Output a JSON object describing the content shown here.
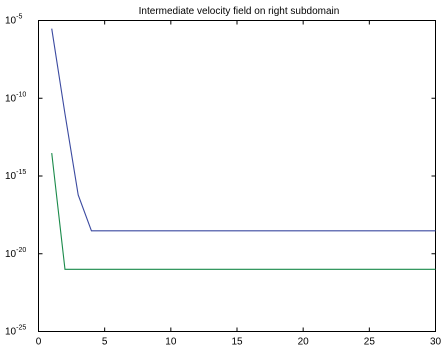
{
  "chart_data": {
    "type": "line",
    "title": "Intermediate velocity field on right subdomain",
    "xlabel": "",
    "ylabel": "",
    "xlim": [
      0,
      30
    ],
    "ylim": [
      1e-25,
      1e-05
    ],
    "yscale": "log",
    "grid": false,
    "x_ticks": [
      "0",
      "5",
      "10",
      "15",
      "20",
      "25",
      "30"
    ],
    "y_ticks": [
      {
        "base": "10",
        "exp": "-5"
      },
      {
        "base": "10",
        "exp": "-10"
      },
      {
        "base": "10",
        "exp": "-15"
      },
      {
        "base": "10",
        "exp": "-20"
      },
      {
        "base": "10",
        "exp": "-25"
      }
    ],
    "series": [
      {
        "color": "#3b4aa0",
        "x": [
          1,
          2,
          3,
          4,
          5,
          10,
          15,
          20,
          25,
          30
        ],
        "y": [
          3e-06,
          1e-11,
          6e-17,
          3e-19,
          3e-19,
          3e-19,
          3e-19,
          3e-19,
          3e-19,
          3e-19
        ]
      },
      {
        "color": "#1a8a4a",
        "x": [
          1,
          2,
          3,
          4,
          5,
          10,
          15,
          20,
          25,
          30
        ],
        "y": [
          3e-14,
          1e-21,
          1e-21,
          1e-21,
          1e-21,
          1e-21,
          1e-21,
          1e-21,
          1e-21,
          1e-21
        ]
      }
    ]
  }
}
